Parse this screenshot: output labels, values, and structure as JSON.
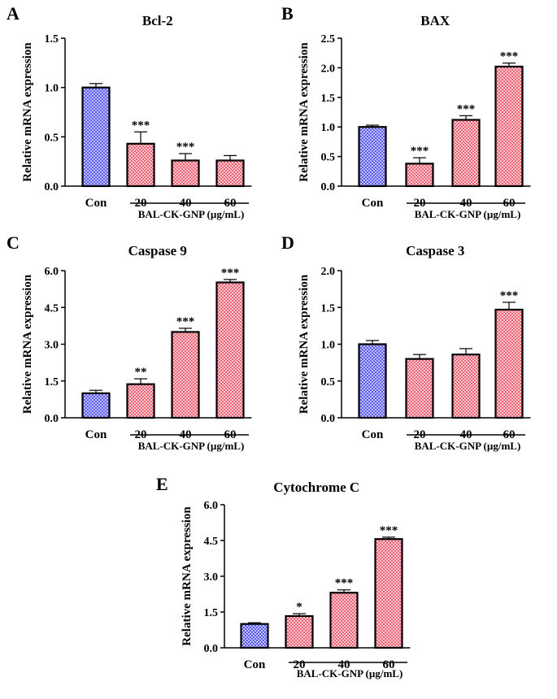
{
  "colors": {
    "control": "#4a4ae6",
    "treated": "#e8566a",
    "axis": "#000000"
  },
  "chart_data": [
    {
      "panel": "A",
      "type": "bar",
      "title": "Bcl-2",
      "ylabel": "Relative mRNA expression",
      "xgroup_label": "BAL-CK-GNP (µg/mL)",
      "categories": [
        "Con",
        "20",
        "40",
        "60"
      ],
      "values": [
        1.0,
        0.43,
        0.26,
        0.26
      ],
      "errors": [
        0.04,
        0.12,
        0.07,
        0.05
      ],
      "significance": [
        "",
        "***",
        "***",
        ""
      ],
      "ylim": [
        0,
        1.5
      ],
      "yticks": [
        0.0,
        0.5,
        1.0,
        1.5
      ],
      "tick_labels": [
        "0.0",
        "0.5",
        "1.0",
        "1.5"
      ]
    },
    {
      "panel": "B",
      "type": "bar",
      "title": "BAX",
      "ylabel": "Relative mRNA expression",
      "xgroup_label": "BAL-CK-GNP (µg/mL)",
      "categories": [
        "Con",
        "20",
        "40",
        "60"
      ],
      "values": [
        1.0,
        0.38,
        1.12,
        2.02
      ],
      "errors": [
        0.03,
        0.1,
        0.07,
        0.06
      ],
      "significance": [
        "",
        "***",
        "***",
        "***"
      ],
      "ylim": [
        0,
        2.5
      ],
      "yticks": [
        0.0,
        0.5,
        1.0,
        1.5,
        2.0,
        2.5
      ],
      "tick_labels": [
        "0.0",
        "0.5",
        "1.0",
        "1.5",
        "2.0",
        "2.5"
      ]
    },
    {
      "panel": "C",
      "type": "bar",
      "title": "Caspase 9",
      "ylabel": "Relative mRNA expression",
      "xgroup_label": "BAL-CK-GNP (µg/mL)",
      "categories": [
        "Con",
        "20",
        "40",
        "60"
      ],
      "values": [
        1.0,
        1.37,
        3.5,
        5.52
      ],
      "errors": [
        0.12,
        0.22,
        0.15,
        0.12
      ],
      "significance": [
        "",
        "**",
        "***",
        "***"
      ],
      "ylim": [
        0,
        6.0
      ],
      "yticks": [
        0.0,
        1.5,
        3.0,
        4.5,
        6.0
      ],
      "tick_labels": [
        "0.0",
        "1.5",
        "3.0",
        "4.5",
        "6.0"
      ]
    },
    {
      "panel": "D",
      "type": "bar",
      "title": "Caspase 3",
      "ylabel": "Relative mRNA expression",
      "xgroup_label": "BAL-CK-GNP (µg/mL)",
      "categories": [
        "Con",
        "20",
        "40",
        "60"
      ],
      "values": [
        1.0,
        0.8,
        0.86,
        1.47
      ],
      "errors": [
        0.05,
        0.06,
        0.08,
        0.1
      ],
      "significance": [
        "",
        "",
        "",
        "***"
      ],
      "ylim": [
        0,
        2.0
      ],
      "yticks": [
        0.0,
        0.5,
        1.0,
        1.5,
        2.0
      ],
      "tick_labels": [
        "0.0",
        "0.5",
        "1.0",
        "1.5",
        "2.0"
      ]
    },
    {
      "panel": "E",
      "type": "bar",
      "title": "Cytochrome C",
      "ylabel": "Relative mRNA expression",
      "xgroup_label": "BAL-CK-GNP (µg/mL)",
      "categories": [
        "Con",
        "20",
        "40",
        "60"
      ],
      "values": [
        1.0,
        1.33,
        2.31,
        4.56
      ],
      "errors": [
        0.05,
        0.1,
        0.12,
        0.08
      ],
      "significance": [
        "",
        "*",
        "***",
        "***"
      ],
      "ylim": [
        0,
        6.0
      ],
      "yticks": [
        0.0,
        1.5,
        3.0,
        4.5,
        6.0
      ],
      "tick_labels": [
        "0.0",
        "1.5",
        "3.0",
        "4.5",
        "6.0"
      ]
    }
  ]
}
